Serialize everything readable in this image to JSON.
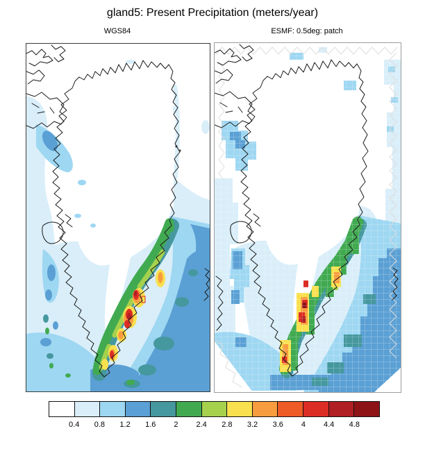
{
  "header": {
    "title": "gland5: Present Precipitation (meters/year)"
  },
  "panels": [
    {
      "label": "WGS84",
      "description": "Source precipitation field on WGS84 grid, smooth filled contours over Greenland"
    },
    {
      "label": "ESMF: 0.5deg: patch",
      "description": "Same field regridded with ESMF patch method to 0.5 degree grid, blocky cells with sawtooth domain edge"
    }
  ],
  "colorbar": {
    "tick_labels": [
      "0.4",
      "0.8",
      "1.2",
      "1.6",
      "2",
      "2.4",
      "2.8",
      "3.2",
      "3.6",
      "4",
      "4.4",
      "4.8"
    ],
    "colors": [
      "#ffffff",
      "#d9eef9",
      "#9ed7f2",
      "#5ba0d4",
      "#45989e",
      "#41aa51",
      "#a6d14d",
      "#f9e04e",
      "#f89d3f",
      "#ee5b26",
      "#dc2d24",
      "#b01f24",
      "#8e1317"
    ]
  },
  "chart_data": {
    "type": "heatmap",
    "title": "gland5: Present Precipitation (meters/year)",
    "variable": "Present Precipitation",
    "units": "meters/year",
    "region": "Greenland and surrounding ocean (incl. Ellesmere Island, Disko Island, NW Iceland fragment)",
    "panels": [
      {
        "label": "WGS84",
        "style": "smooth filled contours"
      },
      {
        "label": "ESMF: 0.5deg: patch",
        "style": "blocky regridded patches with light-gray sawtooth domain boundary"
      }
    ],
    "colorbar": {
      "levels": [
        0.4,
        0.8,
        1.2,
        1.6,
        2,
        2.4,
        2.8,
        3.2,
        3.6,
        4,
        4.4,
        4.8
      ],
      "colors": [
        "#ffffff",
        "#d9eef9",
        "#9ed7f2",
        "#5ba0d4",
        "#45989e",
        "#41aa51",
        "#a6d14d",
        "#f9e04e",
        "#f89d3f",
        "#ee5b26",
        "#dc2d24",
        "#b01f24",
        "#8e1317"
      ],
      "orientation": "horizontal",
      "position": "bottom"
    },
    "pattern_summary": "Interior ice sheet < 0.4 m/yr (white); light blue 0.4-1.2 along west coast, Baffin Bay and southern ocean; medium blue 1.2-1.6 and teal 1.6-2 offshore southeast; green 2-2.4 band hugging the southeast coast; yellow 2.8-3.2, orange 3.2-4 and red > 4 (max > 4.8) hotspots along the southeast coastal mountains between roughly 60N and 66N"
  }
}
